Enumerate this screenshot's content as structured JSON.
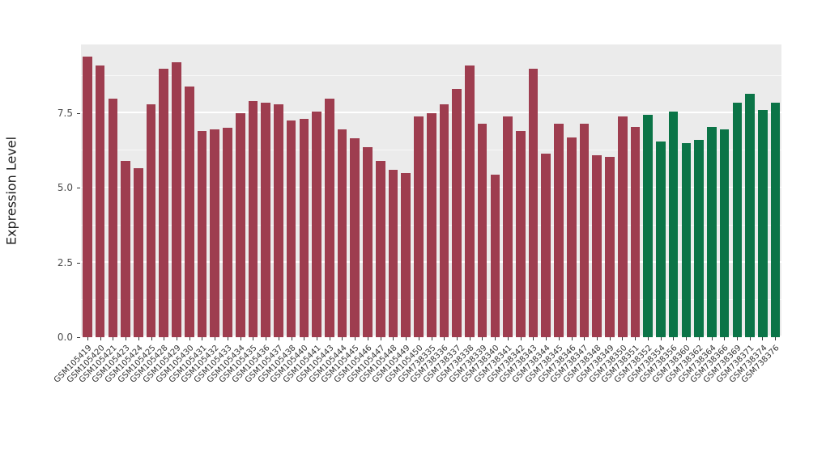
{
  "chart_data": {
    "type": "bar",
    "title": "",
    "xlabel": "",
    "ylabel": "Expression Level",
    "ylim": [
      0,
      9.8
    ],
    "yticks": [
      0.0,
      2.5,
      5.0,
      7.5
    ],
    "ytick_labels": [
      "0.0",
      "2.5",
      "5.0",
      "7.5"
    ],
    "grid": true,
    "legend_position": "none",
    "panel_background": "#EBEBEB",
    "grid_color": "#FFFFFF",
    "categories": [
      "GSM105419",
      "GSM105420",
      "GSM105421",
      "GSM105423",
      "GSM105424",
      "GSM105425",
      "GSM105428",
      "GSM105429",
      "GSM105430",
      "GSM105431",
      "GSM105432",
      "GSM105433",
      "GSM105434",
      "GSM105435",
      "GSM105436",
      "GSM105437",
      "GSM105438",
      "GSM105440",
      "GSM105441",
      "GSM105443",
      "GSM105444",
      "GSM105445",
      "GSM105446",
      "GSM105447",
      "GSM105448",
      "GSM105449",
      "GSM105450",
      "GSM738335",
      "GSM738336",
      "GSM738337",
      "GSM738338",
      "GSM738339",
      "GSM738340",
      "GSM738341",
      "GSM738342",
      "GSM738343",
      "GSM738344",
      "GSM738345",
      "GSM738346",
      "GSM738347",
      "GSM738348",
      "GSM738349",
      "GSM738350",
      "GSM738351",
      "GSM738352",
      "GSM738354",
      "GSM738356",
      "GSM738360",
      "GSM738362",
      "GSM738364",
      "GSM738366",
      "GSM738369",
      "GSM738371",
      "GSM738374",
      "GSM738376"
    ],
    "values": [
      9.4,
      9.1,
      8.0,
      5.9,
      5.65,
      7.8,
      9.0,
      9.2,
      8.4,
      6.9,
      6.95,
      7.0,
      7.5,
      7.9,
      7.85,
      7.8,
      7.25,
      7.3,
      7.55,
      8.0,
      6.95,
      6.65,
      6.35,
      5.9,
      5.6,
      5.5,
      7.4,
      7.5,
      7.8,
      8.3,
      9.1,
      7.15,
      5.45,
      7.4,
      6.9,
      9.0,
      6.15,
      7.15,
      6.7,
      7.15,
      6.1,
      6.05,
      7.4,
      7.05,
      7.45,
      6.55,
      7.55,
      6.5,
      6.6,
      7.05,
      6.95,
      7.85,
      8.15,
      7.6,
      7.85
    ],
    "group_split_index": 44,
    "colors": {
      "group_a": "#9E3D4F",
      "group_b": "#0B7447"
    }
  }
}
